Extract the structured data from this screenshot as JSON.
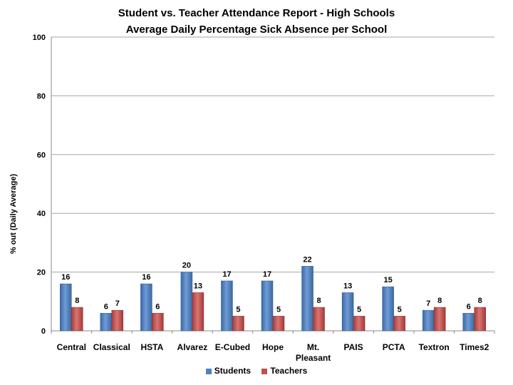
{
  "chart_data": {
    "type": "bar",
    "title": "Student vs. Teacher Attendance Report - High Schools",
    "subtitle": "Average Daily Percentage Sick Absence per School",
    "ylabel": "% out (Daily Average)",
    "xlabel": "",
    "ylim": [
      0,
      100
    ],
    "yticks": [
      0,
      20,
      40,
      60,
      80,
      100
    ],
    "grid": true,
    "legend_position": "bottom",
    "categories": [
      "Central",
      "Classical",
      "HSTA",
      "Alvarez",
      "E-Cubed",
      "Hope",
      "Mt. Pleasant",
      "PAIS",
      "PCTA",
      "Textron",
      "Times2"
    ],
    "series": [
      {
        "name": "Students",
        "color": "#4F81BD",
        "values": [
          16,
          6,
          16,
          20,
          17,
          17,
          22,
          13,
          15,
          7,
          6
        ]
      },
      {
        "name": "Teachers",
        "color": "#C0504D",
        "values": [
          8,
          7,
          6,
          13,
          5,
          5,
          8,
          5,
          5,
          8,
          8
        ]
      }
    ]
  }
}
